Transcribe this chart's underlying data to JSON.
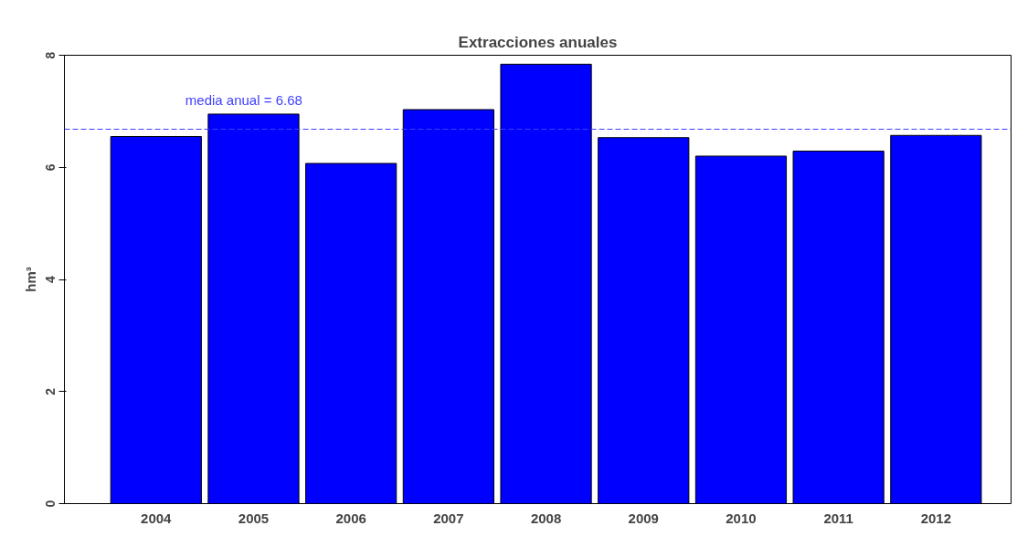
{
  "chart_data": {
    "type": "bar",
    "title": "Extracciones anuales",
    "ylabel": "hm³",
    "categories": [
      "2004",
      "2005",
      "2006",
      "2007",
      "2008",
      "2009",
      "2010",
      "2011",
      "2012"
    ],
    "values": [
      6.55,
      6.95,
      6.07,
      7.03,
      7.84,
      6.53,
      6.2,
      6.29,
      6.57
    ],
    "color": "#0000ff",
    "ylim": [
      0,
      8
    ],
    "yticks": [
      0,
      2,
      4,
      6,
      8
    ],
    "grid": false,
    "ref_lines": [
      {
        "axis": "y",
        "value": 6.68,
        "label": "media anual = 6.68",
        "color": "#4040ff",
        "line_style": "dashed"
      }
    ]
  }
}
